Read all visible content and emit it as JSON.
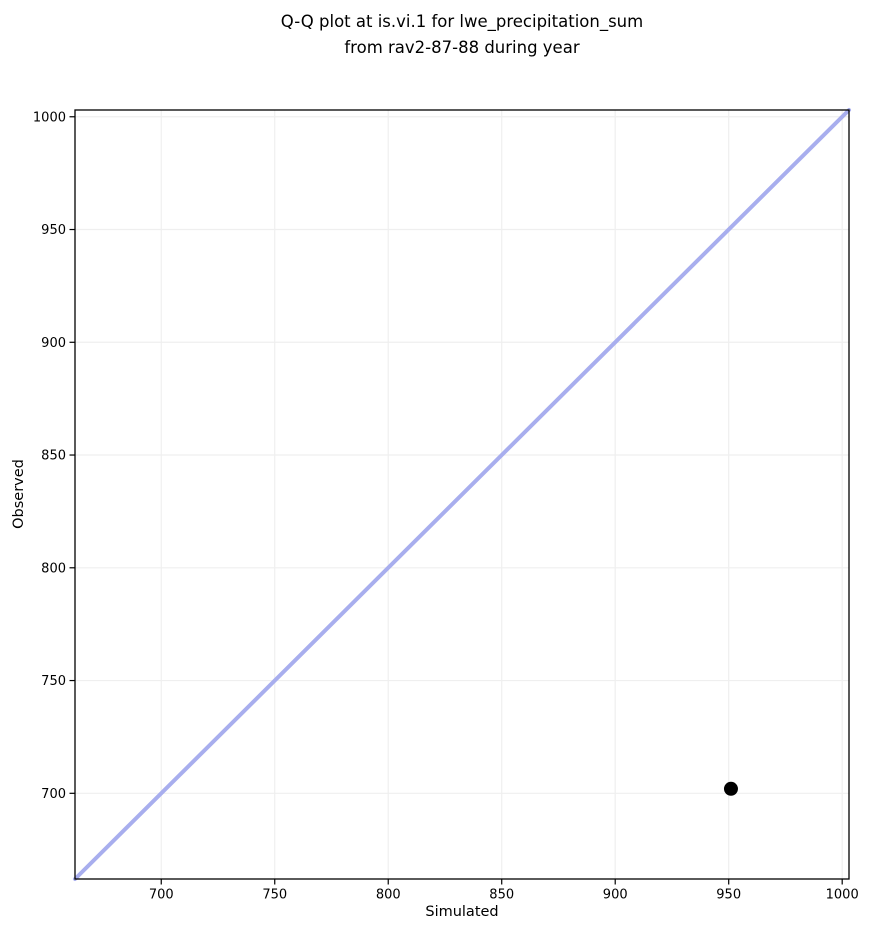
{
  "figure": {
    "background": "#ffffff",
    "title_line1": "Q-Q plot at is.vi.1 for lwe_precipitation_sum",
    "title_line2": "from rav2-87-88 during year"
  },
  "chart_data": {
    "type": "scatter",
    "title": "Q-Q plot at is.vi.1 for lwe_precipitation_sum\nfrom rav2-87-88 during year",
    "xlabel": "Simulated",
    "ylabel": "Observed",
    "xlim": [
      662,
      1003
    ],
    "ylim": [
      662,
      1003
    ],
    "xticks": [
      700,
      750,
      800,
      850,
      900,
      950,
      1000
    ],
    "yticks": [
      700,
      750,
      800,
      850,
      900,
      950,
      1000
    ],
    "grid": true,
    "legend": false,
    "series": [
      {
        "name": "identity-line",
        "kind": "line",
        "x": [
          662,
          1003
        ],
        "y": [
          662,
          1003
        ],
        "color": "#a8aeee",
        "width": 4
      },
      {
        "name": "quantile-points",
        "kind": "scatter",
        "points": [
          {
            "x": 951,
            "y": 702
          }
        ],
        "color": "#000000",
        "marker_diameter": 14
      }
    ],
    "colors": {
      "grid": "#efefef",
      "spine": "#000000",
      "tick": "#000000",
      "tick_label": "#000000",
      "plot_background": "#ffffff"
    }
  }
}
